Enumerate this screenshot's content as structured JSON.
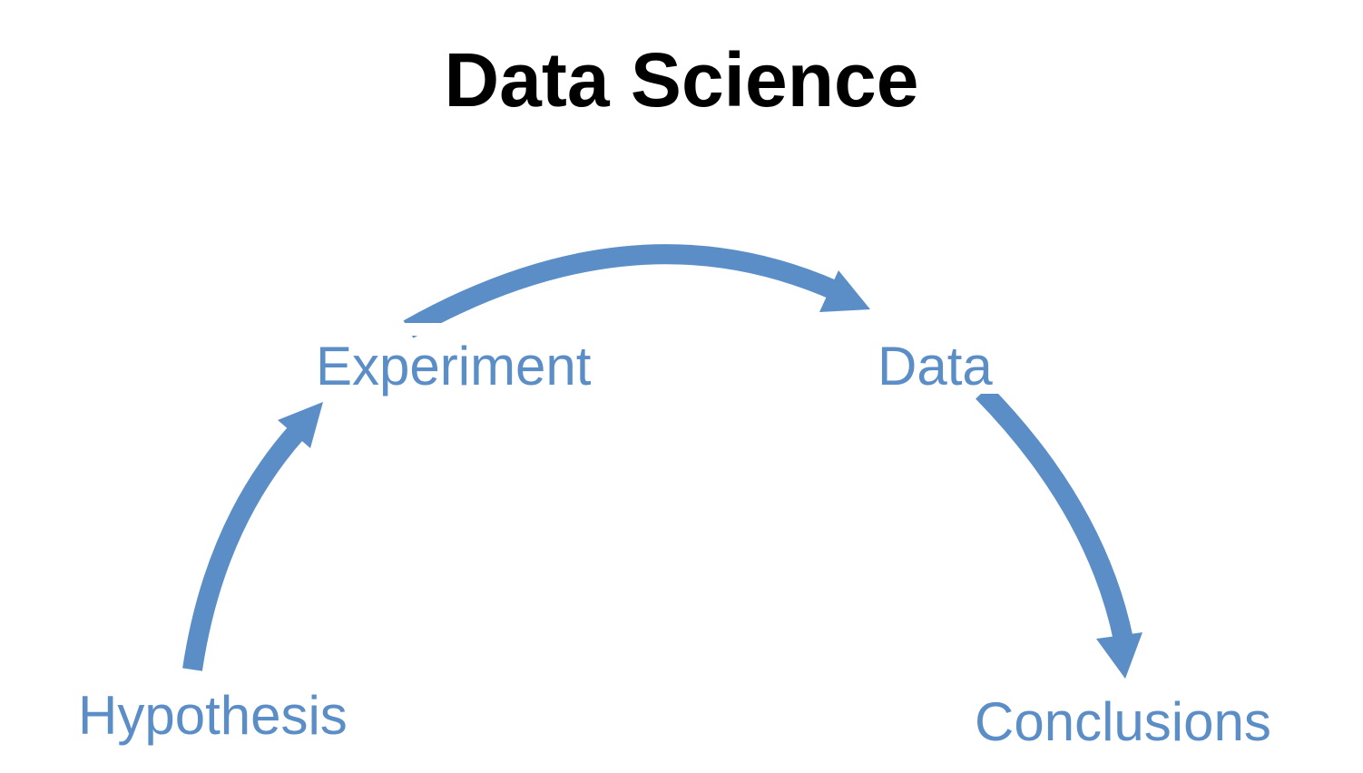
{
  "title": "Data Science",
  "colors": {
    "accent": "#5b8ec7",
    "title": "#000000",
    "background": "#ffffff"
  },
  "nodes": [
    {
      "id": "hypothesis",
      "label": "Hypothesis"
    },
    {
      "id": "experiment",
      "label": "Experiment"
    },
    {
      "id": "data",
      "label": "Data"
    },
    {
      "id": "conclusions",
      "label": "Conclusions"
    }
  ],
  "edges": [
    {
      "from": "hypothesis",
      "to": "experiment"
    },
    {
      "from": "experiment",
      "to": "data"
    },
    {
      "from": "data",
      "to": "conclusions"
    }
  ]
}
